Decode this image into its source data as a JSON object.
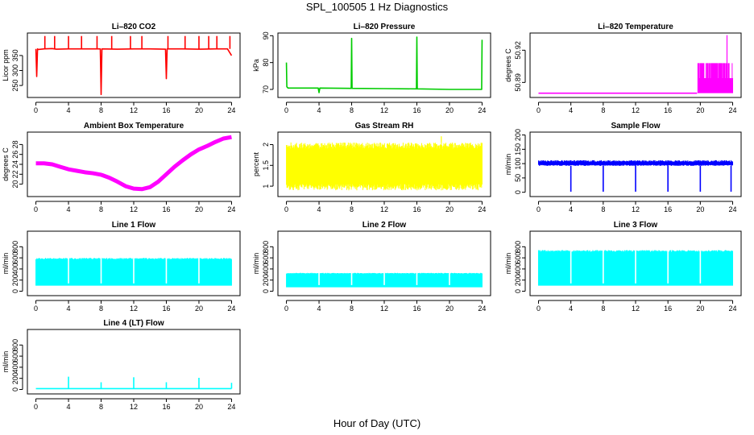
{
  "main_title": "SPL_100505  1 Hz Diagnostics",
  "x_axis_title": "Hour of Day (UTC)",
  "chart_data": [
    {
      "type": "line",
      "title": "Li–820 CO2",
      "ylabel": "Licor ppm",
      "color": "#ff0000",
      "xlim": [
        0,
        24
      ],
      "xticks": [
        0,
        4,
        8,
        12,
        16,
        20,
        24
      ],
      "ylim": [
        210,
        425
      ],
      "yticks": [
        250,
        300,
        350
      ],
      "series": [
        {
          "x": [
            0.0,
            0.1,
            0.2,
            0.3,
            1.0,
            2.0,
            2.5,
            4.0,
            6.0,
            7.9,
            8.0,
            8.1,
            10.0,
            12.0,
            14.0,
            15.9,
            16.0,
            16.1,
            18.0,
            20.0,
            22.0,
            23.5,
            24.0
          ],
          "y": [
            372,
            280,
            372,
            370,
            372,
            373,
            371,
            372,
            372,
            372,
            220,
            372,
            371,
            372,
            372,
            371,
            273,
            372,
            372,
            371,
            372,
            372,
            350
          ]
        }
      ],
      "spikes_up_at": [
        1.1,
        2.3,
        4.0,
        5.6,
        7.5,
        9.3,
        11.6,
        13.0,
        16.2,
        18.3,
        20.0,
        21.2,
        22.2,
        23.8
      ],
      "spike_top": 415
    },
    {
      "type": "line",
      "title": "Li–820 Pressure",
      "ylabel": "kPa",
      "color": "#00cc00",
      "xlim": [
        0,
        24
      ],
      "xticks": [
        0,
        4,
        8,
        12,
        16,
        20,
        24
      ],
      "ylim": [
        67,
        91
      ],
      "yticks": [
        70,
        80,
        90
      ],
      "series": [
        {
          "x": [
            0.0,
            0.05,
            0.2,
            3.9,
            4.0,
            4.1,
            7.95,
            8.0,
            8.05,
            12.0,
            15.95,
            16.0,
            16.05,
            20.0,
            23.95,
            24.0
          ],
          "y": [
            80,
            71,
            70.5,
            70.5,
            68.8,
            70.5,
            70.4,
            89,
            70.4,
            70.3,
            70.2,
            89.5,
            70.2,
            70.0,
            70.0,
            88.5
          ]
        }
      ]
    },
    {
      "type": "line",
      "title": "Li–820 Temperature",
      "ylabel": "degrees C",
      "color": "#ff00ff",
      "xlim": [
        0,
        24
      ],
      "xticks": [
        0,
        4,
        8,
        12,
        16,
        20,
        24
      ],
      "ylim": [
        50.876,
        50.936
      ],
      "yticks": [
        50.89,
        50.92
      ],
      "series": [
        {
          "x": [
            0.0,
            19.6
          ],
          "y": [
            50.88,
            50.88
          ]
        }
      ],
      "noise_band": {
        "x_from": 19.7,
        "x_to": 24.0,
        "low": 50.88,
        "high": 50.908
      },
      "spike": {
        "x": 23.3,
        "y": 50.934
      }
    },
    {
      "type": "line",
      "title": "Ambient Box Temperature",
      "ylabel": "degrees C",
      "color": "#ff00ff",
      "xlim": [
        0,
        24
      ],
      "xticks": [
        0,
        4,
        8,
        12,
        16,
        20,
        24
      ],
      "ylim": [
        17.5,
        30.5
      ],
      "yticks": [
        20,
        22,
        24,
        26,
        28
      ],
      "series": [
        {
          "x": [
            0,
            1,
            2,
            3,
            4,
            5,
            6,
            7,
            8,
            9,
            10,
            11,
            12,
            13,
            14,
            15,
            16,
            17,
            18,
            19,
            20,
            21,
            22,
            23,
            24
          ],
          "y": [
            24.2,
            24.2,
            24.0,
            23.5,
            23.0,
            22.7,
            22.4,
            22.2,
            21.9,
            21.3,
            20.5,
            19.6,
            19.1,
            19.0,
            19.4,
            20.5,
            22.0,
            23.5,
            24.8,
            26.0,
            27.0,
            27.7,
            28.5,
            29.2,
            29.5
          ]
        }
      ]
    },
    {
      "type": "line",
      "title": "Gas Stream RH",
      "ylabel": "percent",
      "color": "#ffff00",
      "xlim": [
        0,
        24
      ],
      "xticks": [
        0,
        4,
        8,
        12,
        16,
        20,
        24
      ],
      "ylim": [
        0.75,
        2.3
      ],
      "yticks": [
        1.0,
        1.5,
        2.0
      ],
      "noise_band": {
        "x_from": 0.0,
        "x_to": 24.0,
        "low": 0.9,
        "high": 2.05
      },
      "spike": {
        "x": 19.0,
        "y": 2.2
      }
    },
    {
      "type": "line",
      "title": "Sample Flow",
      "ylabel": "ml/min",
      "color": "#0000ff",
      "xlim": [
        0,
        24
      ],
      "xticks": [
        0,
        4,
        8,
        12,
        16,
        20,
        24
      ],
      "ylim": [
        -15,
        210
      ],
      "yticks": [
        0,
        50,
        100,
        150,
        200
      ],
      "noise_band": {
        "x_from": 0.0,
        "x_to": 24.0,
        "low": 92,
        "high": 112
      },
      "dips_at": [
        4.0,
        8.0,
        12.0,
        16.0,
        20.0,
        23.8
      ],
      "dip_low": 2
    },
    {
      "type": "line",
      "title": "Line 1 Flow",
      "ylabel": "ml/min",
      "color": "#00ffff",
      "xlim": [
        0,
        24
      ],
      "xticks": [
        0,
        4,
        8,
        12,
        16,
        20,
        24
      ],
      "ylim": [
        -80,
        1080
      ],
      "yticks": [
        0,
        200,
        400,
        600,
        800
      ],
      "noise_band": {
        "x_from": 0.0,
        "x_to": 24.0,
        "low": 100,
        "high": 600
      },
      "gaps_at": [
        4.0,
        8.0,
        12.0,
        16.0,
        20.0
      ]
    },
    {
      "type": "line",
      "title": "Line 2 Flow",
      "ylabel": "ml/min",
      "color": "#00ffff",
      "xlim": [
        0,
        24
      ],
      "xticks": [
        0,
        4,
        8,
        12,
        16,
        20,
        24
      ],
      "ylim": [
        -80,
        1080
      ],
      "yticks": [
        0,
        200,
        400,
        600,
        800
      ],
      "noise_band": {
        "x_from": 0.0,
        "x_to": 24.0,
        "low": 70,
        "high": 330
      },
      "gaps_at": [
        4.0,
        8.0,
        12.0,
        16.0,
        20.0
      ]
    },
    {
      "type": "line",
      "title": "Line 3 Flow",
      "ylabel": "ml/min",
      "color": "#00ffff",
      "xlim": [
        0,
        24
      ],
      "xticks": [
        0,
        4,
        8,
        12,
        16,
        20,
        24
      ],
      "ylim": [
        -80,
        1080
      ],
      "yticks": [
        0,
        200,
        400,
        600,
        800
      ],
      "noise_band": {
        "x_from": 0.0,
        "x_to": 24.0,
        "low": 100,
        "high": 740
      },
      "gaps_at": [
        4.0,
        8.0,
        12.0,
        16.0,
        20.0
      ]
    },
    {
      "type": "line",
      "title": "Line 4 (LT) Flow",
      "ylabel": "ml/min",
      "color": "#00ffff",
      "xlim": [
        0,
        24
      ],
      "xticks": [
        0,
        4,
        8,
        12,
        16,
        20,
        24
      ],
      "ylim": [
        -80,
        1080
      ],
      "yticks": [
        0,
        200,
        400,
        600,
        800
      ],
      "series": [
        {
          "x": [
            0.0,
            24.0
          ],
          "y": [
            15,
            15
          ]
        }
      ],
      "spikes_up_at": [
        4.0,
        8.0,
        12.0,
        16.0,
        20.0,
        24.0
      ],
      "spike_tops": [
        230,
        130,
        220,
        130,
        210,
        120
      ]
    }
  ]
}
